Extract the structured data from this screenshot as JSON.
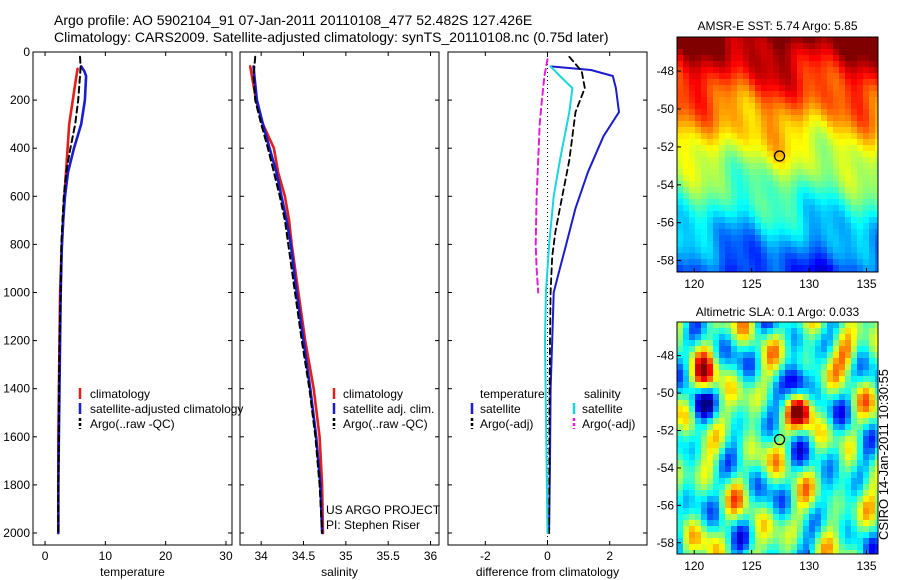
{
  "header": {
    "line1": "Argo profile: AO 5902104_91 07-Jan-2011 20110108_477 52.482S 127.426E",
    "line2": "Climatology: CARS2009. Satellite-adjusted climatology: synTS_20110108.nc (0.75d later)"
  },
  "side_label": "CSIRO 14-Jan-2011 10:30:55",
  "profile_panels": [
    {
      "type": "line",
      "xlabel": "temperature",
      "xlim": [
        -2,
        31
      ],
      "xticks": [
        0,
        10,
        20,
        30
      ],
      "ylim": [
        0,
        2050
      ],
      "yticks": [
        0,
        200,
        400,
        600,
        800,
        1000,
        1200,
        1400,
        1600,
        1800,
        2000
      ],
      "y_inverted": true,
      "legend": {
        "position": "lower-right",
        "entries": [
          {
            "label": "climatology",
            "color": "#e0201a",
            "style": "solid"
          },
          {
            "label": "satellite-adjusted climatology",
            "color": "#1c1ccc",
            "style": "solid"
          },
          {
            "label": "Argo(..raw -QC)",
            "color": "#000000",
            "style": "dashed"
          }
        ]
      },
      "series": [
        {
          "name": "climatology",
          "color": "#e0201a",
          "style": "solid",
          "width": 2.6,
          "x": [
            5.4,
            5.2,
            4.6,
            4.0,
            3.6,
            3.2,
            3.0,
            2.7,
            2.5,
            2.4,
            2.3,
            2.2,
            2.2,
            2.2,
            2.2
          ],
          "y": [
            70,
            100,
            200,
            300,
            450,
            600,
            700,
            850,
            1000,
            1200,
            1400,
            1600,
            1800,
            1950,
            2000
          ]
        },
        {
          "name": "satellite-adjusted climatology",
          "color": "#1c1ccc",
          "style": "solid",
          "width": 2.6,
          "x": [
            6.0,
            6.5,
            6.8,
            6.6,
            6.0,
            4.8,
            3.8,
            3.3,
            3.0,
            2.8,
            2.6,
            2.5,
            2.4,
            2.3,
            2.2,
            2.2
          ],
          "y": [
            60,
            80,
            100,
            200,
            300,
            400,
            500,
            600,
            700,
            800,
            1000,
            1200,
            1400,
            1600,
            1800,
            2000
          ]
        },
        {
          "name": "Argo(..raw -QC)",
          "color": "#000000",
          "style": "dashed",
          "width": 2.0,
          "x": [
            5.8,
            5.9,
            5.8,
            5.5,
            5.0,
            4.2,
            3.5,
            3.1,
            2.9,
            2.7,
            2.6,
            2.4,
            2.3,
            2.3,
            2.2,
            2.2
          ],
          "y": [
            20,
            60,
            100,
            200,
            300,
            400,
            500,
            600,
            700,
            800,
            1000,
            1200,
            1400,
            1600,
            1800,
            2000
          ]
        }
      ]
    },
    {
      "type": "line",
      "xlabel": "salinity",
      "xlim": [
        33.75,
        36.1
      ],
      "xticks": [
        34,
        34.5,
        35,
        35.5,
        36
      ],
      "ylim": [
        0,
        2050
      ],
      "yticks": [
        0,
        200,
        400,
        600,
        800,
        1000,
        1200,
        1400,
        1600,
        1800,
        2000
      ],
      "y_inverted": true,
      "legend": {
        "position": "lower-right",
        "entries": [
          {
            "label": "climatology",
            "color": "#e0201a",
            "style": "solid"
          },
          {
            "label": "satellite adj. clim.",
            "color": "#1c1ccc",
            "style": "solid"
          },
          {
            "label": "Argo(..raw -QC)",
            "color": "#000000",
            "style": "dashed"
          }
        ]
      },
      "annotation": [
        "US ARGO PROJECT",
        "PI: Stephen Riser"
      ],
      "series": [
        {
          "name": "climatology",
          "color": "#e0201a",
          "style": "solid",
          "width": 2.6,
          "x": [
            33.87,
            33.89,
            33.94,
            34.02,
            34.15,
            34.2,
            34.28,
            34.33,
            34.36,
            34.44,
            34.52,
            34.62,
            34.69,
            34.72,
            34.73
          ],
          "y": [
            60,
            100,
            200,
            300,
            400,
            500,
            600,
            700,
            800,
            1000,
            1200,
            1400,
            1600,
            1800,
            2000
          ]
        },
        {
          "name": "satellite adj. clim.",
          "color": "#1c1ccc",
          "style": "solid",
          "width": 2.6,
          "x": [
            33.91,
            33.92,
            33.95,
            34.02,
            34.1,
            34.18,
            34.24,
            34.3,
            34.35,
            34.42,
            34.5,
            34.58,
            34.65,
            34.7,
            34.72
          ],
          "y": [
            60,
            100,
            200,
            300,
            400,
            500,
            600,
            700,
            800,
            1000,
            1200,
            1400,
            1600,
            1800,
            2000
          ]
        },
        {
          "name": "Argo(..raw -QC)",
          "color": "#000000",
          "style": "dashed",
          "width": 2.0,
          "x": [
            33.93,
            33.92,
            33.91,
            33.93,
            34.0,
            34.08,
            34.15,
            34.22,
            34.28,
            34.32,
            34.4,
            34.48,
            34.57,
            34.64,
            34.69,
            34.72
          ],
          "y": [
            20,
            60,
            100,
            200,
            300,
            400,
            500,
            600,
            700,
            800,
            1000,
            1200,
            1400,
            1600,
            1800,
            2000
          ]
        }
      ]
    },
    {
      "type": "line",
      "xlabel": "difference from climatology",
      "xlim": [
        -3.2,
        3.2
      ],
      "xticks": [
        -2,
        0,
        2
      ],
      "ylim": [
        0,
        2050
      ],
      "yticks": [
        0,
        200,
        400,
        600,
        800,
        1000,
        1200,
        1400,
        1600,
        1800,
        2000
      ],
      "y_inverted": true,
      "zero_line": {
        "x": 0,
        "color": "#000000",
        "style": "dotted"
      },
      "legend": {
        "position": "lower-center",
        "headers": [
          "temperature",
          "salinity"
        ],
        "entries": [
          {
            "label": "satellite",
            "color": "#1c1ccc",
            "style": "solid",
            "group": "temperature"
          },
          {
            "label": "Argo(-adj)",
            "color": "#000000",
            "style": "dashed",
            "group": "temperature"
          },
          {
            "label": "satellite",
            "color": "#19d6dc",
            "style": "solid",
            "group": "salinity"
          },
          {
            "label": "Argo(-adj)",
            "color": "#e020d8",
            "style": "dashed",
            "group": "salinity"
          }
        ]
      },
      "series": [
        {
          "name": "temperature satellite",
          "color": "#1c1ccc",
          "style": "solid",
          "width": 2.0,
          "x": [
            0.1,
            1.4,
            2.1,
            2.2,
            2.3,
            1.8,
            1.3,
            0.9,
            0.6,
            0.4,
            0.2,
            0.15,
            0.1,
            0.08,
            0.05
          ],
          "y": [
            60,
            75,
            100,
            150,
            250,
            350,
            500,
            650,
            800,
            900,
            1000,
            1200,
            1400,
            1700,
            2000
          ]
        },
        {
          "name": "temperature Argo(-adj)",
          "color": "#000000",
          "style": "dashed",
          "width": 1.8,
          "x": [
            0.7,
            1.1,
            1.2,
            0.9,
            0.8,
            0.7,
            0.55,
            0.4,
            0.25,
            0.15,
            0.1,
            0.08,
            0.06,
            0.05
          ],
          "y": [
            20,
            80,
            150,
            250,
            350,
            450,
            550,
            650,
            750,
            850,
            1000,
            1200,
            1500,
            2000
          ]
        },
        {
          "name": "salinity satellite",
          "color": "#19d6dc",
          "style": "solid",
          "width": 2.0,
          "x": [
            0.1,
            0.4,
            0.8,
            0.7,
            0.55,
            0.4,
            0.2,
            0.05,
            -0.05,
            -0.08,
            -0.05,
            -0.02,
            0.0
          ],
          "y": [
            60,
            100,
            150,
            250,
            350,
            450,
            600,
            800,
            1000,
            1200,
            1500,
            1800,
            2000
          ]
        },
        {
          "name": "salinity Argo(-adj)",
          "color": "#e020d8",
          "style": "dashed",
          "width": 2.0,
          "x": [
            0.0,
            -0.1,
            -0.18,
            -0.25,
            -0.3,
            -0.35,
            -0.38,
            -0.35,
            -0.3
          ],
          "y": [
            30,
            100,
            200,
            300,
            450,
            600,
            800,
            900,
            1000
          ]
        }
      ]
    }
  ],
  "map_panels": [
    {
      "type": "heatmap",
      "title": "AMSR-E SST: 5.74 Argo: 5.85",
      "xticks": [
        120,
        125,
        130,
        135
      ],
      "yticks": [
        -48,
        -50,
        -52,
        -54,
        -56,
        -58
      ],
      "xlim": [
        118.5,
        136
      ],
      "ylim": [
        -58.6,
        -46.2
      ],
      "marker": {
        "lon": 127.43,
        "lat": -52.48,
        "shape": "circle"
      },
      "field": "sst"
    },
    {
      "type": "heatmap",
      "title": "Altimetric SLA: 0.1 Argo: 0.033",
      "xticks": [
        120,
        125,
        130,
        135
      ],
      "yticks": [
        -48,
        -50,
        -52,
        -54,
        -56,
        -58
      ],
      "xlim": [
        118.5,
        136
      ],
      "ylim": [
        -58.6,
        -46.2
      ],
      "marker": {
        "lon": 127.43,
        "lat": -52.48,
        "shape": "circle"
      },
      "field": "sla"
    }
  ]
}
